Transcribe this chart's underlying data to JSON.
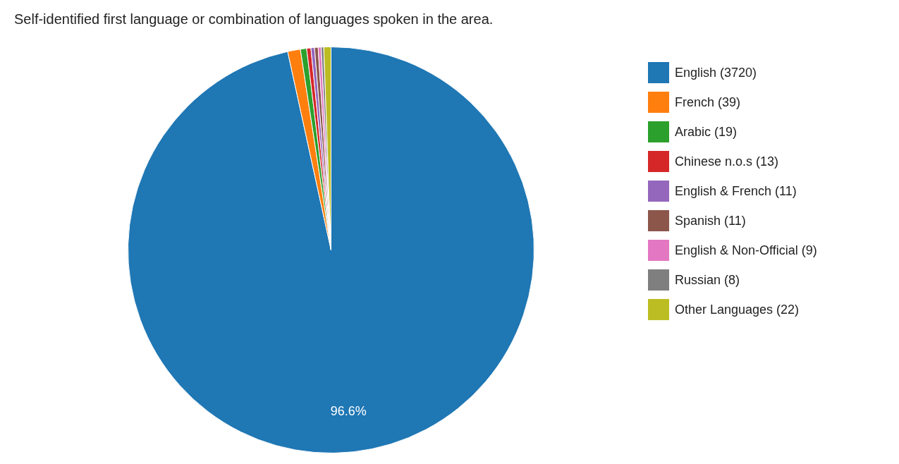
{
  "chart_data": {
    "type": "pie",
    "title": "Self-identified first language or combination of languages spoken in the area.",
    "categories": [
      "English (3720)",
      "French (39)",
      "Arabic (19)",
      "Chinese n.o.s (13)",
      "English & French (11)",
      "Spanish (11)",
      "English & Non-Official (9)",
      "Russian (8)",
      "Other Languages (22)"
    ],
    "values": [
      3720,
      39,
      19,
      13,
      11,
      11,
      9,
      8,
      22
    ],
    "colors": [
      "#1f77b4",
      "#ff7f0e",
      "#2ca02c",
      "#d62728",
      "#9467bd",
      "#8c564b",
      "#e377c2",
      "#7f7f7f",
      "#bcbd22"
    ],
    "annotations": [
      {
        "text": "96.6%",
        "x": "English (3720)"
      }
    ],
    "legend": "right"
  }
}
